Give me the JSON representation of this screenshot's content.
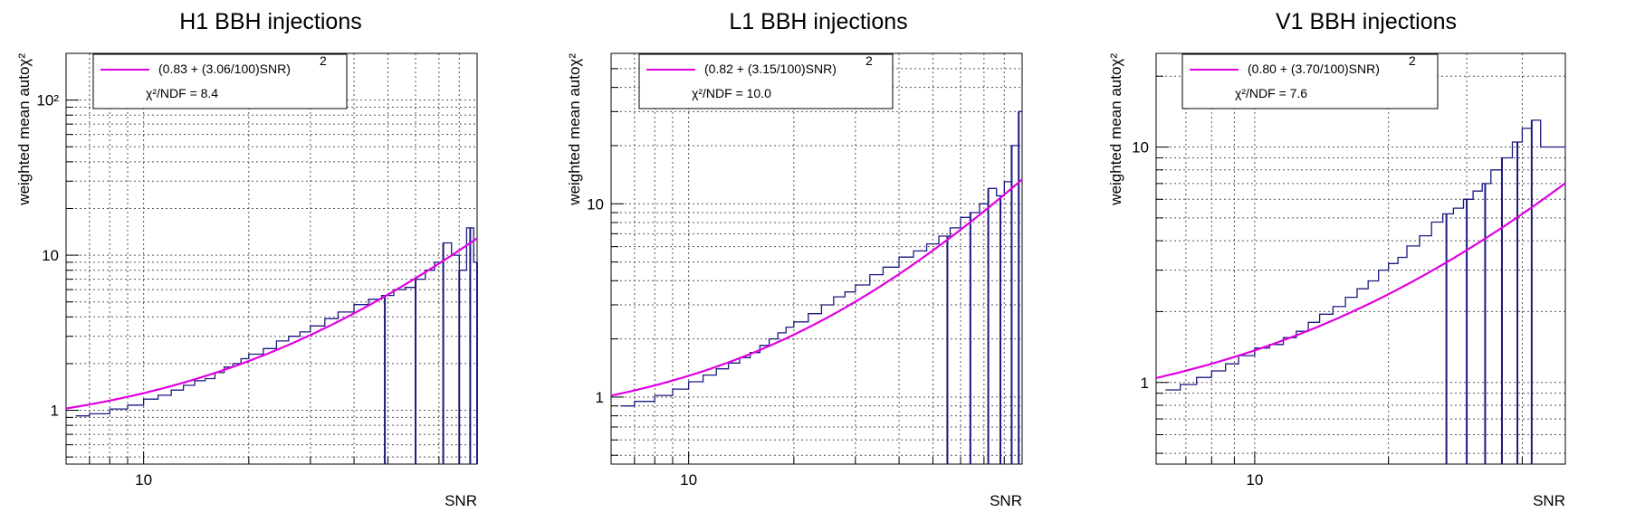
{
  "chart_data": [
    {
      "type": "line",
      "title": "H1 BBH injections",
      "xlabel": "SNR",
      "ylabel": "weighted mean autoχ²",
      "xscale": "log",
      "yscale": "log",
      "xlim": [
        6,
        90
      ],
      "ylim": [
        0.45,
        200
      ],
      "x_ticks": [
        {
          "value": 10,
          "label": "10"
        }
      ],
      "y_ticks": [
        {
          "value": 1,
          "label": "1"
        },
        {
          "value": 10,
          "label": "10"
        },
        {
          "value": 100,
          "label": "10²"
        }
      ],
      "grid": true,
      "legend_position": "top-left",
      "fit": {
        "a": 0.83,
        "b": 3.06,
        "label": "(0.83 + (3.06/100)SNR)",
        "exponent": "2",
        "color": "#e100e1"
      },
      "fit_stat": {
        "label": "χ²/NDF = 8.4"
      },
      "series": [
        {
          "color": "#1a1a80",
          "x": [
            6.4,
            7.0,
            8.0,
            9.0,
            10.0,
            11.0,
            12.0,
            13.0,
            14.0,
            15.0,
            16.0,
            17.0,
            18.0,
            19.0,
            20.0,
            22.0,
            24.0,
            26.0,
            28.0,
            30.0,
            33.0,
            36.0,
            40.0,
            44.0,
            48.0,
            52.0,
            56.0,
            60.0,
            64.0,
            68.0,
            72.0,
            76.0,
            80.0,
            84.0,
            88.0
          ],
          "y": [
            0.92,
            0.95,
            1.02,
            1.08,
            1.18,
            1.25,
            1.35,
            1.45,
            1.55,
            1.6,
            1.75,
            1.9,
            2.0,
            2.15,
            2.3,
            2.5,
            2.8,
            3.0,
            3.2,
            3.5,
            3.9,
            4.3,
            4.8,
            5.2,
            5.5,
            6.0,
            6.2,
            7.0,
            8.0,
            9.0,
            12.0,
            10.0,
            8.0,
            15.0,
            9.0
          ],
          "dips": [
            49,
            60,
            72,
            80,
            86,
            90
          ]
        }
      ]
    },
    {
      "type": "line",
      "title": "L1 BBH injections",
      "xlabel": "SNR",
      "ylabel": "weighted mean autoχ²",
      "xscale": "log",
      "yscale": "log",
      "xlim": [
        6,
        90
      ],
      "ylim": [
        0.45,
        60
      ],
      "x_ticks": [
        {
          "value": 10,
          "label": "10"
        }
      ],
      "y_ticks": [
        {
          "value": 1,
          "label": "1"
        },
        {
          "value": 10,
          "label": "10"
        }
      ],
      "grid": true,
      "legend_position": "top-left",
      "fit": {
        "a": 0.82,
        "b": 3.15,
        "label": "(0.82 + (3.15/100)SNR)",
        "exponent": "2",
        "color": "#e100e1"
      },
      "fit_stat": {
        "label": "χ²/NDF = 10.0"
      },
      "series": [
        {
          "color": "#1a1a80",
          "x": [
            6.4,
            7.0,
            8.0,
            9.0,
            10.0,
            11.0,
            12.0,
            13.0,
            14.0,
            15.0,
            16.0,
            17.0,
            18.0,
            19.0,
            20.0,
            22.0,
            24.0,
            26.0,
            28.0,
            30.0,
            33.0,
            36.0,
            40.0,
            44.0,
            48.0,
            52.0,
            56.0,
            60.0,
            64.0,
            68.0,
            72.0,
            76.0,
            80.0,
            84.0,
            88.0
          ],
          "y": [
            0.9,
            0.95,
            1.02,
            1.1,
            1.2,
            1.3,
            1.4,
            1.5,
            1.6,
            1.7,
            1.85,
            2.0,
            2.15,
            2.3,
            2.45,
            2.7,
            3.0,
            3.3,
            3.5,
            3.8,
            4.3,
            4.7,
            5.3,
            5.7,
            6.2,
            6.8,
            7.5,
            8.5,
            9.0,
            10.0,
            12.0,
            11.0,
            13.0,
            20.0,
            30.0
          ],
          "dips": [
            55,
            64,
            72,
            78,
            84,
            88
          ]
        }
      ]
    },
    {
      "type": "line",
      "title": "V1 BBH injections",
      "xlabel": "SNR",
      "ylabel": "weighted mean autoχ²",
      "xscale": "log",
      "yscale": "log",
      "xlim": [
        6,
        50
      ],
      "ylim": [
        0.45,
        25
      ],
      "x_ticks": [
        {
          "value": 10,
          "label": "10"
        }
      ],
      "y_ticks": [
        {
          "value": 1,
          "label": "1"
        },
        {
          "value": 10,
          "label": "10"
        }
      ],
      "grid": true,
      "legend_position": "top-left",
      "fit": {
        "a": 0.8,
        "b": 3.7,
        "label": "(0.80 + (3.70/100)SNR)",
        "exponent": "2",
        "color": "#e100e1"
      },
      "fit_stat": {
        "label": "χ²/NDF = 7.6"
      },
      "series": [
        {
          "color": "#1a1a80",
          "x": [
            6.3,
            6.8,
            7.4,
            8.0,
            8.6,
            9.2,
            10.0,
            10.8,
            11.6,
            12.4,
            13.2,
            14.0,
            15.0,
            16.0,
            17.0,
            18.0,
            19.0,
            20.0,
            21.0,
            22.0,
            23.5,
            25.0,
            26.5,
            28.0,
            29.5,
            31.0,
            32.5,
            34.0,
            36.0,
            38.0,
            40.0,
            42.0,
            44.0
          ],
          "y": [
            0.93,
            0.98,
            1.05,
            1.12,
            1.2,
            1.3,
            1.4,
            1.45,
            1.55,
            1.65,
            1.8,
            1.95,
            2.1,
            2.3,
            2.5,
            2.7,
            3.0,
            3.2,
            3.4,
            3.8,
            4.2,
            4.8,
            5.2,
            5.5,
            6.0,
            6.5,
            7.0,
            8.0,
            9.0,
            10.5,
            12.0,
            13.0,
            10.0
          ],
          "dips": [
            27,
            30,
            33,
            36,
            39,
            42
          ]
        }
      ]
    }
  ]
}
